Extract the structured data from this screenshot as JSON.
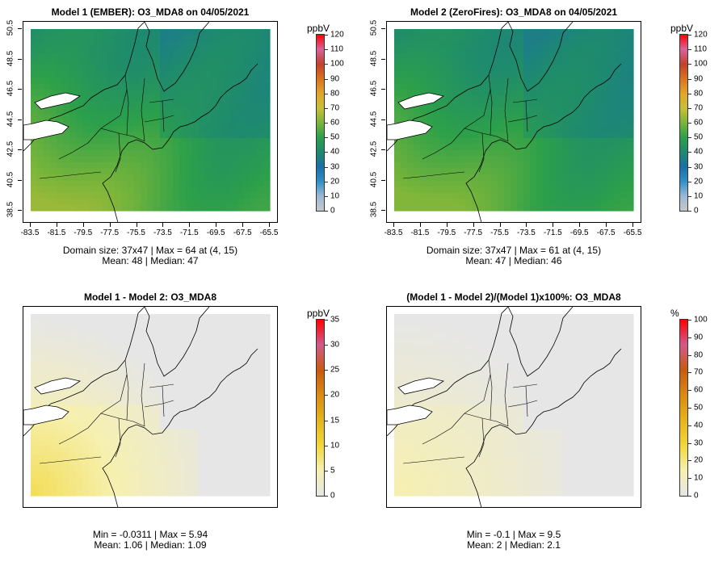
{
  "panels": [
    {
      "title": "Model 1 (EMBER): O3_MDA8 on 04/05/2021",
      "stats_line1": "Domain size: 37x47 | Max = 64 at (4, 15)",
      "stats_line2": "Mean: 48 |  Median: 47",
      "colorbar": {
        "unit": "ppbV",
        "labels": [
          "120",
          "110",
          "100",
          "90",
          "80",
          "70",
          "60",
          "50",
          "40",
          "30",
          "20",
          "10",
          "0"
        ]
      },
      "x_ticks": [
        "-83.5",
        "-81.5",
        "-79.5",
        "-77.5",
        "-75.5",
        "-73.5",
        "-71.5",
        "-69.5",
        "-67.5",
        "-65.5"
      ],
      "y_ticks": [
        "50.5",
        "48.5",
        "46.5",
        "44.5",
        "42.5",
        "40.5",
        "38.5"
      ],
      "field_mean": 48,
      "field_max": 64
    },
    {
      "title": "Model 2 (ZeroFires): O3_MDA8 on 04/05/2021",
      "stats_line1": "Domain size: 37x47 | Max = 61 at (4, 15)",
      "stats_line2": "Mean: 47 |  Median: 46",
      "colorbar": {
        "unit": "ppbV",
        "labels": [
          "120",
          "110",
          "100",
          "90",
          "80",
          "70",
          "60",
          "50",
          "40",
          "30",
          "20",
          "10",
          "0"
        ]
      },
      "x_ticks": [
        "-83.5",
        "-81.5",
        "-79.5",
        "-77.5",
        "-75.5",
        "-73.5",
        "-71.5",
        "-69.5",
        "-67.5",
        "-65.5"
      ],
      "y_ticks": [
        "50.5",
        "48.5",
        "46.5",
        "44.5",
        "42.5",
        "40.5",
        "38.5"
      ],
      "field_mean": 47,
      "field_max": 61
    },
    {
      "title": "Model 1 - Model 2: O3_MDA8",
      "stats_line1": "Min = -0.0311 | Max = 5.94",
      "stats_line2": "Mean: 1.06 |  Median: 1.09",
      "colorbar": {
        "unit": "ppbV",
        "labels": [
          "35",
          "30",
          "25",
          "20",
          "15",
          "10",
          "5",
          "0"
        ]
      },
      "field_mean": 1.06,
      "field_max": 5.94
    },
    {
      "title": "(Model 1 - Model 2)/(Model 1)x100%: O3_MDA8",
      "stats_line1": "Min = -0.1 | Max = 9.5",
      "stats_line2": "Mean: 2 |  Median: 2.1",
      "colorbar": {
        "unit": "%",
        "labels": [
          "100",
          "90",
          "80",
          "70",
          "60",
          "50",
          "40",
          "30",
          "20",
          "10",
          "0"
        ]
      },
      "field_mean": 2,
      "field_max": 9.5
    }
  ],
  "colors": {
    "abs_scale": [
      "#c8c8c8",
      "#9ab8d6",
      "#2f8fc8",
      "#1b6fa8",
      "#1e8a6e",
      "#2da04a",
      "#7ab53a",
      "#c9bf36",
      "#e3a52a",
      "#d9731e",
      "#c4402c",
      "#d8639a",
      "#ff0000"
    ],
    "diff_scale": [
      "#e6e6e6",
      "#f6f0b0",
      "#f2d73a",
      "#e6b31e",
      "#dc8a12",
      "#c95a10",
      "#d25a8a",
      "#ff0000"
    ]
  }
}
